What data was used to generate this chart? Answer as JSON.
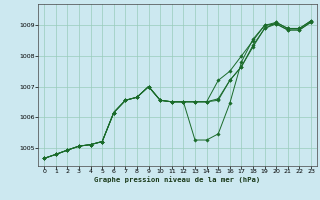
{
  "title": "",
  "xlabel": "Graphe pression niveau de la mer (hPa)",
  "bg_color": "#cce8f0",
  "grid_color": "#99ccbb",
  "line_color": "#1a6b2a",
  "marker_color": "#1a6b2a",
  "xlim": [
    -0.5,
    23.5
  ],
  "ylim": [
    1004.4,
    1009.7
  ],
  "xticks": [
    0,
    1,
    2,
    3,
    4,
    5,
    6,
    7,
    8,
    9,
    10,
    11,
    12,
    13,
    14,
    15,
    16,
    17,
    18,
    19,
    20,
    21,
    22,
    23
  ],
  "yticks": [
    1005,
    1006,
    1007,
    1008,
    1009
  ],
  "series": [
    [
      1004.65,
      1004.78,
      1004.92,
      1005.05,
      1005.1,
      1005.2,
      1006.15,
      1006.55,
      1006.65,
      1007.0,
      1006.55,
      1006.5,
      1006.5,
      1005.25,
      1005.25,
      1005.45,
      1006.45,
      1007.8,
      1008.55,
      1009.0,
      1009.05,
      1008.85,
      1008.85,
      1009.1
    ],
    [
      1004.65,
      1004.78,
      1004.92,
      1005.05,
      1005.1,
      1005.2,
      1006.15,
      1006.55,
      1006.65,
      1007.0,
      1006.55,
      1006.5,
      1006.5,
      1006.5,
      1006.5,
      1007.2,
      1007.5,
      1008.0,
      1008.5,
      1009.0,
      1009.1,
      1008.9,
      1008.9,
      1009.15
    ],
    [
      1004.65,
      1004.78,
      1004.92,
      1005.05,
      1005.1,
      1005.2,
      1006.15,
      1006.55,
      1006.65,
      1007.0,
      1006.55,
      1006.5,
      1006.5,
      1006.5,
      1006.5,
      1006.6,
      1007.2,
      1007.65,
      1008.3,
      1008.9,
      1009.1,
      1008.9,
      1008.9,
      1009.15
    ],
    [
      1004.65,
      1004.78,
      1004.92,
      1005.05,
      1005.1,
      1005.2,
      1006.15,
      1006.55,
      1006.65,
      1007.0,
      1006.55,
      1006.5,
      1006.5,
      1006.5,
      1006.5,
      1006.55,
      1007.2,
      1007.65,
      1008.35,
      1008.9,
      1009.05,
      1008.85,
      1008.85,
      1009.12
    ]
  ]
}
